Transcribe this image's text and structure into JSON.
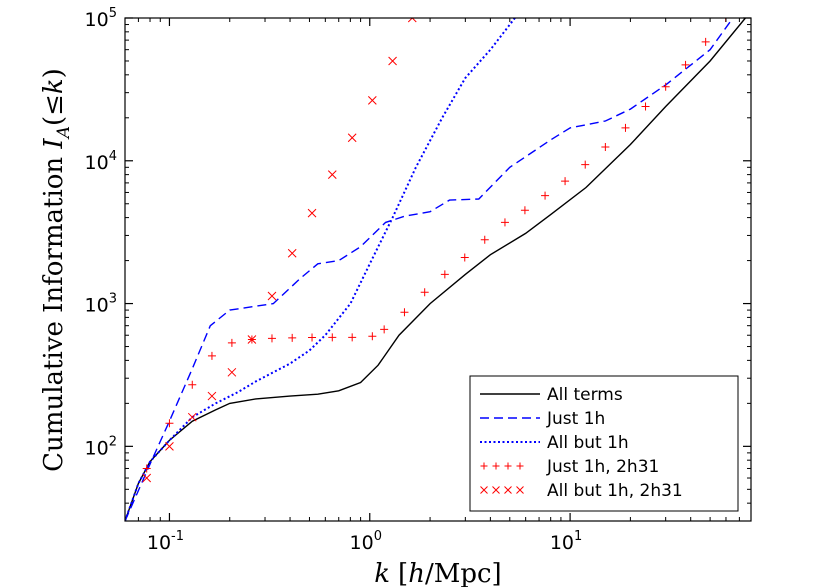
{
  "chart_data": {
    "type": "line",
    "title": "",
    "xlabel": "k [h/Mpc]",
    "ylabel": "Cumulative Information I_A(≤k)",
    "xlabel_parts": {
      "k": "k",
      "bracket_open": "[",
      "h": "h",
      "slash_mpc": "/Mpc",
      "bracket_close": "]"
    },
    "ylabel_parts": {
      "text": "Cumulative Information ",
      "I": "I",
      "sub": "A",
      "arg": "(≤",
      "k": "k",
      "close": ")"
    },
    "xscale": "log",
    "yscale": "log",
    "xlim": [
      0.06,
      80
    ],
    "ylim": [
      30,
      100000
    ],
    "xticks": [
      {
        "value": 0.1,
        "base": "10",
        "exp": "-1"
      },
      {
        "value": 1,
        "base": "10",
        "exp": "0"
      },
      {
        "value": 10,
        "base": "10",
        "exp": "1"
      }
    ],
    "yticks": [
      {
        "value": 100,
        "base": "10",
        "exp": "2"
      },
      {
        "value": 1000,
        "base": "10",
        "exp": "3"
      },
      {
        "value": 10000,
        "base": "10",
        "exp": "4"
      },
      {
        "value": 100000,
        "base": "10",
        "exp": "5"
      }
    ],
    "legend_position": "lower-right",
    "series": [
      {
        "name": "All terms",
        "style": "solid",
        "color": "#000000",
        "points": [
          [
            0.06,
            30
          ],
          [
            0.07,
            55
          ],
          [
            0.08,
            78
          ],
          [
            0.1,
            110
          ],
          [
            0.13,
            150
          ],
          [
            0.17,
            180
          ],
          [
            0.2,
            200
          ],
          [
            0.27,
            215
          ],
          [
            0.4,
            225
          ],
          [
            0.55,
            232
          ],
          [
            0.7,
            245
          ],
          [
            0.9,
            280
          ],
          [
            1.1,
            370
          ],
          [
            1.4,
            600
          ],
          [
            2,
            1000
          ],
          [
            3,
            1600
          ],
          [
            4,
            2200
          ],
          [
            6,
            3100
          ],
          [
            8,
            4200
          ],
          [
            12,
            6500
          ],
          [
            20,
            13000
          ],
          [
            30,
            24000
          ],
          [
            50,
            50000
          ],
          [
            75,
            100000
          ]
        ]
      },
      {
        "name": "Just 1h",
        "style": "dashed",
        "color": "#0000ff",
        "points": [
          [
            0.06,
            30
          ],
          [
            0.08,
            75
          ],
          [
            0.1,
            150
          ],
          [
            0.13,
            350
          ],
          [
            0.16,
            700
          ],
          [
            0.2,
            900
          ],
          [
            0.33,
            1000
          ],
          [
            0.45,
            1500
          ],
          [
            0.55,
            1900
          ],
          [
            0.7,
            2000
          ],
          [
            0.9,
            2500
          ],
          [
            1.2,
            3700
          ],
          [
            1.5,
            4100
          ],
          [
            2,
            4400
          ],
          [
            2.5,
            5300
          ],
          [
            3.5,
            5400
          ],
          [
            5,
            9000
          ],
          [
            8,
            14000
          ],
          [
            10,
            17000
          ],
          [
            15,
            19000
          ],
          [
            20,
            23000
          ],
          [
            30,
            34000
          ],
          [
            50,
            60000
          ],
          [
            65,
            100000
          ]
        ]
      },
      {
        "name": "All but 1h",
        "style": "dotted",
        "color": "#0000ff",
        "points": [
          [
            0.06,
            30
          ],
          [
            0.07,
            55
          ],
          [
            0.08,
            78
          ],
          [
            0.1,
            110
          ],
          [
            0.13,
            160
          ],
          [
            0.17,
            200
          ],
          [
            0.22,
            240
          ],
          [
            0.27,
            285
          ],
          [
            0.33,
            330
          ],
          [
            0.4,
            380
          ],
          [
            0.5,
            470
          ],
          [
            0.6,
            600
          ],
          [
            0.8,
            1000
          ],
          [
            1,
            1900
          ],
          [
            1.3,
            4000
          ],
          [
            1.7,
            9000
          ],
          [
            2.3,
            20000
          ],
          [
            3,
            38000
          ],
          [
            4,
            60000
          ],
          [
            5.3,
            100000
          ]
        ]
      },
      {
        "name": "Just 1h, 2h31",
        "style": "plus",
        "color": "#ff0000",
        "points": [
          [
            0.077,
            70
          ],
          [
            0.1,
            145
          ],
          [
            0.13,
            270
          ],
          [
            0.163,
            430
          ],
          [
            0.205,
            530
          ],
          [
            0.258,
            560
          ],
          [
            0.325,
            570
          ],
          [
            0.41,
            575
          ],
          [
            0.515,
            578
          ],
          [
            0.65,
            580
          ],
          [
            0.817,
            580
          ],
          [
            1.03,
            590
          ],
          [
            1.18,
            660
          ],
          [
            1.49,
            870
          ],
          [
            1.88,
            1200
          ],
          [
            2.37,
            1600
          ],
          [
            2.98,
            2100
          ],
          [
            3.75,
            2800
          ],
          [
            4.73,
            3700
          ],
          [
            5.95,
            4500
          ],
          [
            7.5,
            5700
          ],
          [
            9.44,
            7200
          ],
          [
            11.9,
            9400
          ],
          [
            15,
            12500
          ],
          [
            18.9,
            17000
          ],
          [
            23.8,
            24000
          ],
          [
            30,
            33000
          ],
          [
            37.7,
            47000
          ],
          [
            47.5,
            68000
          ],
          [
            59.8,
            100000
          ]
        ]
      },
      {
        "name": "All but 1h, 2h31",
        "style": "cross",
        "color": "#ff0000",
        "points": [
          [
            0.077,
            60
          ],
          [
            0.1,
            100
          ],
          [
            0.13,
            160
          ],
          [
            0.163,
            225
          ],
          [
            0.205,
            330
          ],
          [
            0.258,
            560
          ],
          [
            0.325,
            1130
          ],
          [
            0.41,
            2250
          ],
          [
            0.515,
            4300
          ],
          [
            0.65,
            8000
          ],
          [
            0.817,
            14500
          ],
          [
            1.03,
            26500
          ],
          [
            1.3,
            50000
          ],
          [
            1.63,
            100000
          ]
        ]
      }
    ]
  }
}
